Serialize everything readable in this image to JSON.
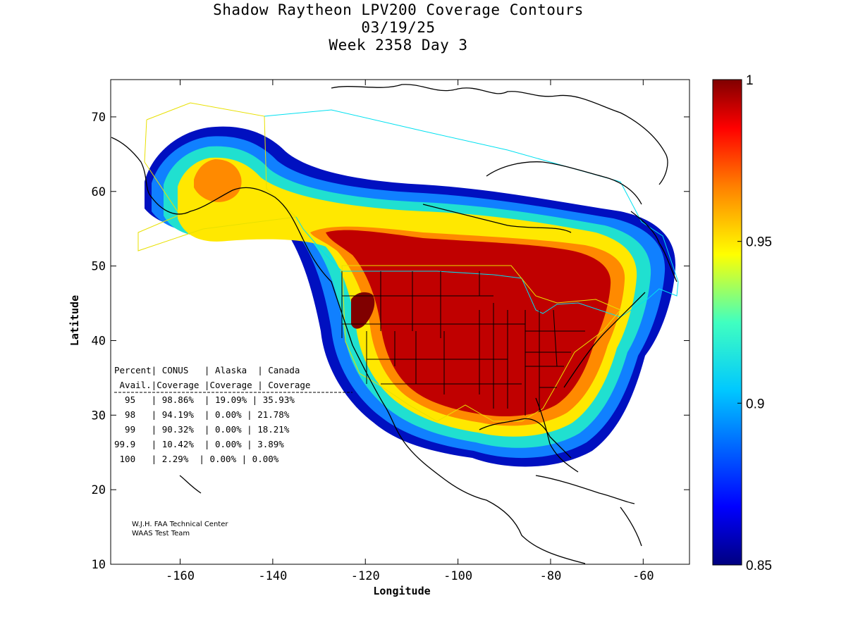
{
  "title": {
    "line1": "Shadow Raytheon LPV200 Coverage Contours",
    "line2": "03/19/25",
    "line3": "Week 2358 Day 3"
  },
  "axes": {
    "xlabel": "Longitude",
    "ylabel": "Latitude",
    "xlim": [
      -175,
      -50
    ],
    "ylim": [
      10,
      75
    ],
    "x_ticks": [
      -160,
      -140,
      -120,
      -100,
      -80,
      -60
    ],
    "y_ticks": [
      10,
      20,
      30,
      40,
      50,
      60,
      70
    ]
  },
  "colorbar": {
    "min": 0.85,
    "max": 1,
    "tick_values": [
      0.85,
      0.9,
      0.95,
      1
    ],
    "tick_labels": [
      "0.85",
      "0.9",
      "0.95",
      "1"
    ]
  },
  "table": {
    "header1": "Percent| CONUS   | Alaska  | Canada",
    "header2": " Avail.|Coverage |Coverage | Coverage",
    "rows": [
      "  95   | 98.86%  | 19.09% | 35.93%",
      "  98   | 94.19%  | 0.00% | 21.78%",
      "  99   | 90.32%  | 0.00% | 18.21%",
      "99.9   | 10.42%  | 0.00% | 3.89%",
      " 100   | 2.29%  | 0.00% | 0.00%"
    ]
  },
  "credits": {
    "line1": "W.J.H. FAA Technical Center",
    "line2": "WAAS Test Team"
  },
  "colors": {
    "service_boundary_conus_alaska": "#e8e000",
    "service_boundary_canada": "#00e0f0",
    "coastline": "#000000"
  }
}
